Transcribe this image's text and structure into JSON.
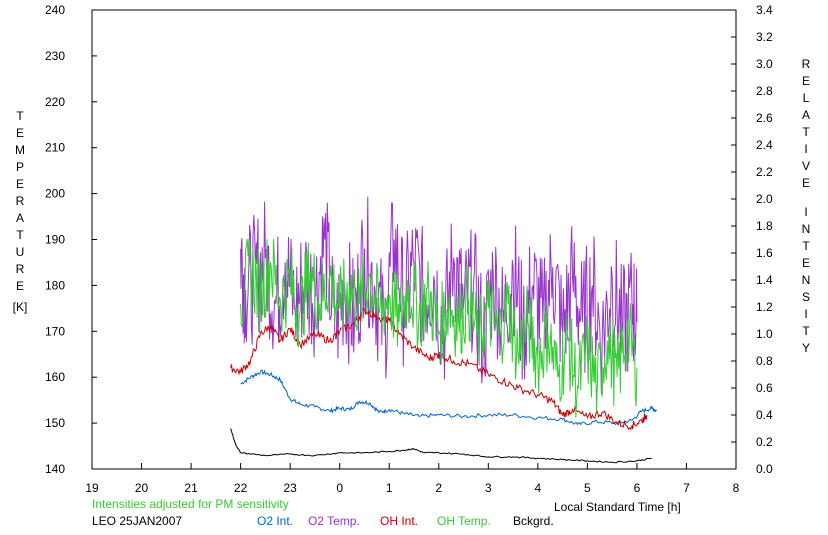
{
  "chart_data": {
    "type": "line",
    "left_axis": {
      "label_letters": [
        "T",
        "E",
        "M",
        "P",
        "E",
        "R",
        "A",
        "T",
        "U",
        "R",
        "E"
      ],
      "unit": "[K]",
      "range": [
        140,
        240
      ],
      "ticks": [
        140,
        150,
        160,
        170,
        180,
        190,
        200,
        210,
        220,
        230,
        240
      ]
    },
    "right_axis": {
      "label_word1": [
        "R",
        "E",
        "L",
        "A",
        "T",
        "I",
        "V",
        "E"
      ],
      "label_word2": [
        "I",
        "N",
        "T",
        "E",
        "N",
        "S",
        "I",
        "T",
        "Y"
      ],
      "range": [
        0.0,
        3.4
      ],
      "ticks": [
        "0.0",
        "0.2",
        "0.4",
        "0.6",
        "0.8",
        "1.0",
        "1.2",
        "1.4",
        "1.6",
        "1.8",
        "2.0",
        "2.2",
        "2.4",
        "2.6",
        "2.8",
        "3.0",
        "3.2",
        "3.4"
      ]
    },
    "x_axis": {
      "label": "Local Standard Time [h]",
      "range": [
        19,
        32
      ],
      "ticks": [
        "19",
        "20",
        "21",
        "22",
        "23",
        "0",
        "1",
        "2",
        "3",
        "4",
        "5",
        "6",
        "7",
        "8"
      ]
    },
    "note": "Intensities adjusted for PM sensitivity",
    "station": "LEO 25JAN2007",
    "series": [
      {
        "name": "O2 Int.",
        "axis": "right",
        "color": "#0066cc",
        "points": [
          [
            22.0,
            0.63
          ],
          [
            22.2,
            0.68
          ],
          [
            22.4,
            0.72
          ],
          [
            22.6,
            0.7
          ],
          [
            22.8,
            0.66
          ],
          [
            23.0,
            0.52
          ],
          [
            23.2,
            0.48
          ],
          [
            23.5,
            0.46
          ],
          [
            23.8,
            0.43
          ],
          [
            24.0,
            0.45
          ],
          [
            24.2,
            0.44
          ],
          [
            24.4,
            0.5
          ],
          [
            24.6,
            0.49
          ],
          [
            24.8,
            0.42
          ],
          [
            25.0,
            0.44
          ],
          [
            25.3,
            0.41
          ],
          [
            25.6,
            0.39
          ],
          [
            26.0,
            0.4
          ],
          [
            26.5,
            0.39
          ],
          [
            27.0,
            0.4
          ],
          [
            27.5,
            0.4
          ],
          [
            28.0,
            0.38
          ],
          [
            28.5,
            0.37
          ],
          [
            28.8,
            0.33
          ],
          [
            29.2,
            0.35
          ],
          [
            29.6,
            0.34
          ],
          [
            29.9,
            0.36
          ],
          [
            30.1,
            0.43
          ],
          [
            30.3,
            0.45
          ],
          [
            30.4,
            0.43
          ]
        ]
      },
      {
        "name": "O2 Temp.",
        "axis": "left",
        "color": "#9933cc",
        "points": [
          [
            22.0,
            188
          ],
          [
            22.1,
            179
          ],
          [
            22.3,
            182
          ],
          [
            22.5,
            186
          ],
          [
            22.7,
            176
          ],
          [
            22.9,
            185
          ],
          [
            23.1,
            175
          ],
          [
            23.3,
            182
          ],
          [
            23.5,
            178
          ],
          [
            23.7,
            190
          ],
          [
            23.9,
            170
          ],
          [
            24.1,
            180
          ],
          [
            24.3,
            172
          ],
          [
            24.5,
            188
          ],
          [
            24.7,
            180
          ],
          [
            24.9,
            170
          ],
          [
            25.1,
            190
          ],
          [
            25.3,
            175
          ],
          [
            25.5,
            185
          ],
          [
            25.7,
            178
          ],
          [
            25.9,
            182
          ],
          [
            26.1,
            170
          ],
          [
            26.3,
            186
          ],
          [
            26.5,
            175
          ],
          [
            26.7,
            180
          ],
          [
            26.9,
            168
          ],
          [
            27.1,
            182
          ],
          [
            27.3,
            172
          ],
          [
            27.5,
            184
          ],
          [
            27.7,
            170
          ],
          [
            27.9,
            180
          ],
          [
            28.1,
            172
          ],
          [
            28.3,
            184
          ],
          [
            28.5,
            170
          ],
          [
            28.7,
            182
          ],
          [
            28.9,
            172
          ],
          [
            29.1,
            180
          ],
          [
            29.3,
            168
          ],
          [
            29.5,
            182
          ],
          [
            29.7,
            170
          ],
          [
            29.9,
            176
          ],
          [
            30.0,
            172
          ]
        ]
      },
      {
        "name": "OH Int.",
        "axis": "right",
        "color": "#cc0000",
        "points": [
          [
            21.8,
            0.75
          ],
          [
            22.0,
            0.72
          ],
          [
            22.2,
            0.8
          ],
          [
            22.4,
            1.0
          ],
          [
            22.6,
            1.06
          ],
          [
            22.8,
            0.95
          ],
          [
            23.0,
            1.04
          ],
          [
            23.2,
            0.92
          ],
          [
            23.5,
            1.0
          ],
          [
            23.8,
            0.95
          ],
          [
            24.0,
            1.02
          ],
          [
            24.3,
            1.08
          ],
          [
            24.5,
            1.18
          ],
          [
            24.8,
            1.12
          ],
          [
            25.0,
            1.1
          ],
          [
            25.2,
            1.0
          ],
          [
            25.5,
            0.9
          ],
          [
            25.8,
            0.82
          ],
          [
            26.0,
            0.85
          ],
          [
            26.3,
            0.8
          ],
          [
            26.6,
            0.78
          ],
          [
            27.0,
            0.7
          ],
          [
            27.3,
            0.65
          ],
          [
            27.6,
            0.6
          ],
          [
            28.0,
            0.55
          ],
          [
            28.3,
            0.5
          ],
          [
            28.5,
            0.4
          ],
          [
            28.7,
            0.44
          ],
          [
            29.0,
            0.38
          ],
          [
            29.3,
            0.42
          ],
          [
            29.6,
            0.34
          ],
          [
            29.9,
            0.32
          ],
          [
            30.1,
            0.36
          ],
          [
            30.2,
            0.4
          ]
        ]
      },
      {
        "name": "OH Temp.",
        "axis": "left",
        "color": "#33cc33",
        "points": [
          [
            22.0,
            176
          ],
          [
            22.2,
            184
          ],
          [
            22.4,
            178
          ],
          [
            22.6,
            185
          ],
          [
            22.8,
            177
          ],
          [
            23.0,
            181
          ],
          [
            23.2,
            174
          ],
          [
            23.4,
            183
          ],
          [
            23.6,
            176
          ],
          [
            23.8,
            182
          ],
          [
            24.0,
            175
          ],
          [
            24.2,
            180
          ],
          [
            24.4,
            176
          ],
          [
            24.6,
            182
          ],
          [
            24.8,
            174
          ],
          [
            25.0,
            178
          ],
          [
            25.2,
            172
          ],
          [
            25.4,
            180
          ],
          [
            25.6,
            174
          ],
          [
            25.8,
            178
          ],
          [
            26.0,
            170
          ],
          [
            26.2,
            176
          ],
          [
            26.4,
            172
          ],
          [
            26.6,
            177
          ],
          [
            26.8,
            168
          ],
          [
            27.0,
            175
          ],
          [
            27.2,
            169
          ],
          [
            27.4,
            176
          ],
          [
            27.6,
            165
          ],
          [
            27.8,
            172
          ],
          [
            28.0,
            164
          ],
          [
            28.2,
            170
          ],
          [
            28.4,
            160
          ],
          [
            28.6,
            168
          ],
          [
            28.8,
            158
          ],
          [
            29.0,
            166
          ],
          [
            29.2,
            158
          ],
          [
            29.4,
            168
          ],
          [
            29.6,
            160
          ],
          [
            29.8,
            170
          ],
          [
            30.0,
            162
          ]
        ]
      },
      {
        "name": "Bckgrd.",
        "axis": "right",
        "color": "#000000",
        "points": [
          [
            21.8,
            0.3
          ],
          [
            21.9,
            0.18
          ],
          [
            22.0,
            0.12
          ],
          [
            22.5,
            0.1
          ],
          [
            23.0,
            0.11
          ],
          [
            23.5,
            0.1
          ],
          [
            24.0,
            0.12
          ],
          [
            24.5,
            0.12
          ],
          [
            25.0,
            0.13
          ],
          [
            25.3,
            0.14
          ],
          [
            25.5,
            0.15
          ],
          [
            25.7,
            0.12
          ],
          [
            26.0,
            0.12
          ],
          [
            26.5,
            0.11
          ],
          [
            27.0,
            0.09
          ],
          [
            27.5,
            0.09
          ],
          [
            28.0,
            0.08
          ],
          [
            28.5,
            0.07
          ],
          [
            29.0,
            0.06
          ],
          [
            29.5,
            0.05
          ],
          [
            30.0,
            0.06
          ],
          [
            30.3,
            0.08
          ]
        ]
      }
    ]
  }
}
